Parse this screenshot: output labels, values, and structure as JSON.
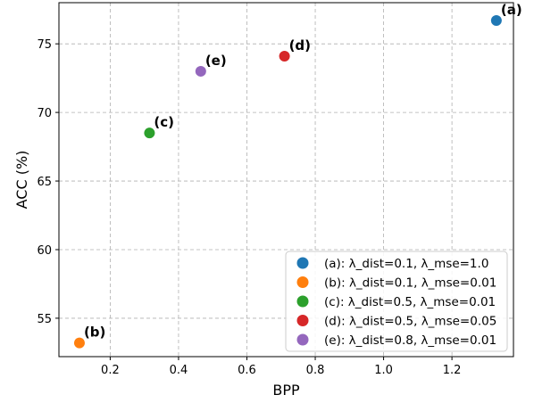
{
  "chart_data": {
    "type": "scatter",
    "title": "",
    "xlabel": "BPP",
    "ylabel": "ACC (%)",
    "xlim": [
      0.05,
      1.38
    ],
    "ylim": [
      52.2,
      78.0
    ],
    "xticks": [
      0.2,
      0.4,
      0.6,
      0.8,
      1.0,
      1.2
    ],
    "xtick_labels": [
      "0.2",
      "0.4",
      "0.6",
      "0.8",
      "1.0",
      "1.2"
    ],
    "yticks": [
      55,
      60,
      65,
      70,
      75
    ],
    "ytick_labels": [
      "55",
      "60",
      "65",
      "70",
      "75"
    ],
    "grid": true,
    "legend_position": "lower-right",
    "series": [
      {
        "name": "(a): λ_dist=0.1, λ_mse=1.0",
        "label": "(a)",
        "x": 1.33,
        "y": 76.7,
        "color": "#1f77b4"
      },
      {
        "name": "(b): λ_dist=0.1, λ_mse=0.01",
        "label": "(b)",
        "x": 0.11,
        "y": 53.2,
        "color": "#ff7f0e"
      },
      {
        "name": "(c): λ_dist=0.5, λ_mse=0.01",
        "label": "(c)",
        "x": 0.315,
        "y": 68.5,
        "color": "#2ca02c"
      },
      {
        "name": "(d): λ_dist=0.5, λ_mse=0.05",
        "label": "(d)",
        "x": 0.71,
        "y": 74.1,
        "color": "#d62728"
      },
      {
        "name": "(e): λ_dist=0.8, λ_mse=0.01",
        "label": "(e)",
        "x": 0.465,
        "y": 73.0,
        "color": "#9467bd"
      }
    ]
  }
}
